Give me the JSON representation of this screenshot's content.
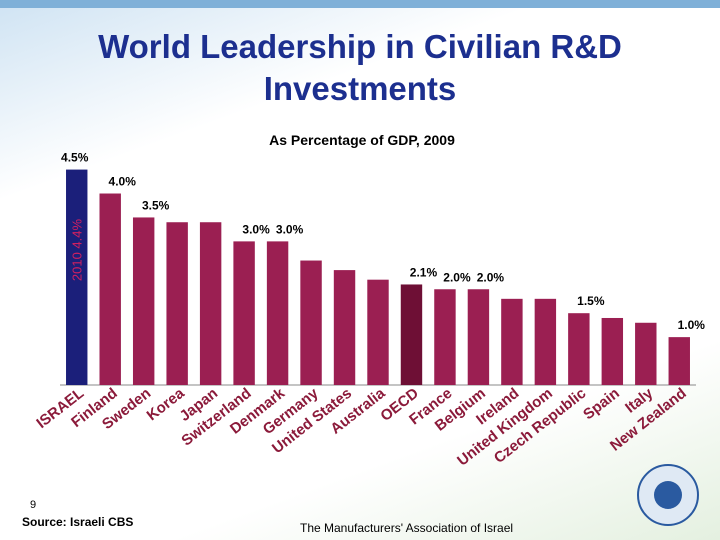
{
  "title": "World Leadership in Civilian R&D Investments",
  "page_number": "9",
  "source": "Source: Israeli CBS",
  "footer": "The Manufacturers' Association of Israel",
  "chart_data": {
    "type": "bar",
    "subtitle": "As Percentage of GDP, 2009",
    "categories": [
      "ISRAEL",
      "Finland",
      "Sweden",
      "Korea",
      "Japan",
      "Switzerland",
      "Denmark",
      "Germany",
      "United States",
      "Australia",
      "OECD",
      "France",
      "Belgium",
      "Ireland",
      "United Kingdom",
      "Czech Republic",
      "Spain",
      "Italy",
      "New Zealand"
    ],
    "values": [
      4.5,
      4.0,
      3.5,
      3.4,
      3.4,
      3.0,
      3.0,
      2.6,
      2.4,
      2.2,
      2.1,
      2.0,
      2.0,
      1.8,
      1.8,
      1.5,
      1.4,
      1.3,
      1.0
    ],
    "value_labels": [
      "4.5%",
      "4.0%",
      "3.5%",
      null,
      null,
      "3.0%",
      "3.0%",
      null,
      null,
      null,
      "2.1%",
      "2.0%",
      "2.0%",
      null,
      null,
      "1.5%",
      null,
      null,
      "1.0%"
    ],
    "colors": [
      "#1b1f7a",
      "#9b1f52",
      "#9b1f52",
      "#9b1f52",
      "#9b1f52",
      "#9b1f52",
      "#9b1f52",
      "#9b1f52",
      "#9b1f52",
      "#9b1f52",
      "#6e0f35",
      "#9b1f52",
      "#9b1f52",
      "#9b1f52",
      "#9b1f52",
      "#9b1f52",
      "#9b1f52",
      "#9b1f52",
      "#9b1f52"
    ],
    "annotation": "2010   4.4%",
    "ylim": [
      0,
      4.7
    ]
  }
}
